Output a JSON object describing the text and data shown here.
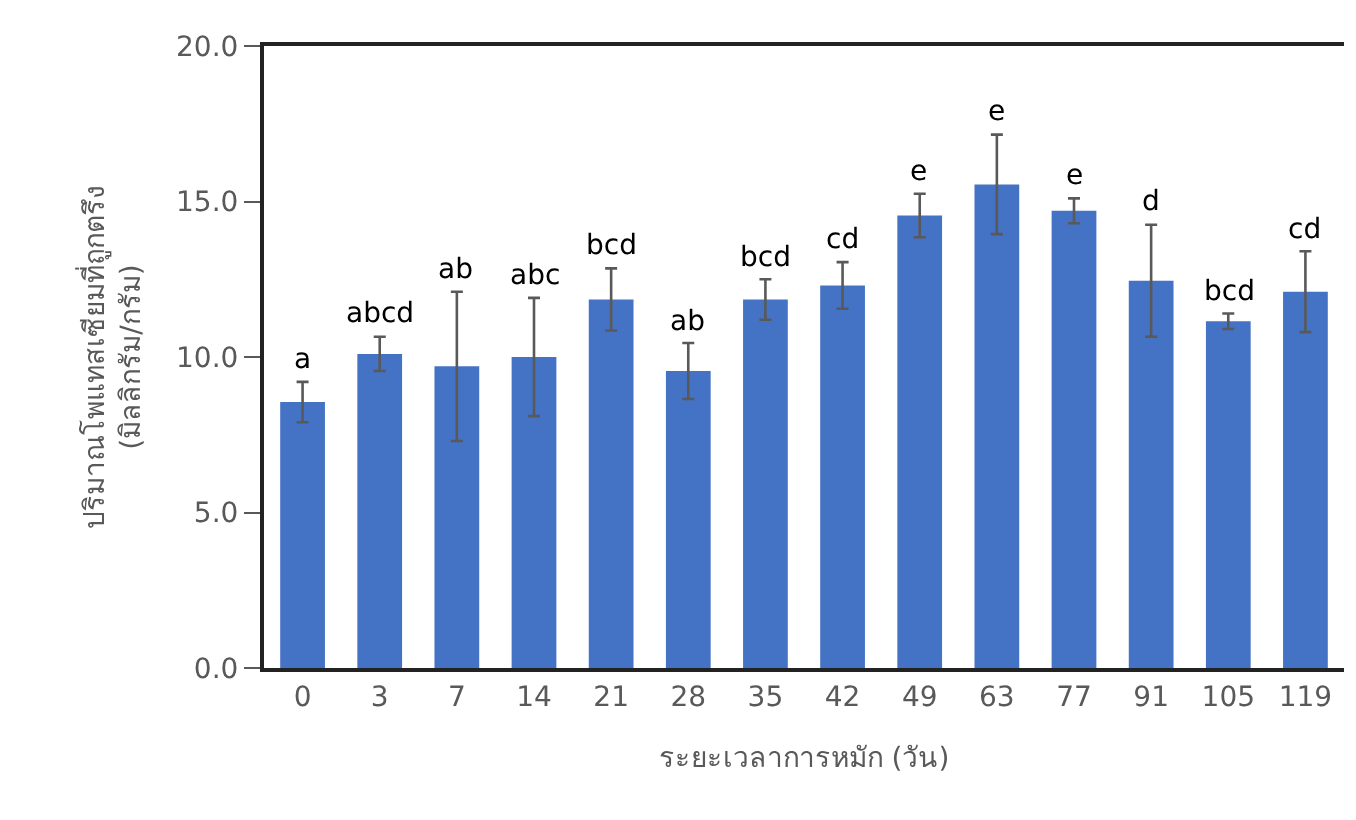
{
  "chart_data": {
    "type": "bar",
    "xlabel": "ระยะเวลาการหมัก (วัน)",
    "ylabel": "ปริมาณโพแทสเซียมที่ถูกตรึง\n(มิลลิกรัม/กรัม)",
    "categories": [
      "0",
      "3",
      "7",
      "14",
      "21",
      "28",
      "35",
      "42",
      "49",
      "63",
      "77",
      "91",
      "105",
      "119"
    ],
    "values": [
      8.55,
      10.1,
      9.7,
      10.0,
      11.85,
      9.55,
      11.85,
      12.3,
      14.55,
      15.55,
      14.7,
      12.45,
      11.15,
      12.1
    ],
    "errors": [
      0.65,
      0.55,
      2.4,
      1.9,
      1.0,
      0.9,
      0.65,
      0.75,
      0.7,
      1.6,
      0.4,
      1.8,
      0.25,
      1.3
    ],
    "color": "#4472c4",
    "ylim": [
      0,
      20
    ],
    "yticks": [
      {
        "value": 0,
        "label": "0.0"
      },
      {
        "value": 5,
        "label": "5.0"
      },
      {
        "value": 10,
        "label": "10.0"
      },
      {
        "value": 15,
        "label": "15.0"
      },
      {
        "value": 20,
        "label": "20.0"
      }
    ],
    "grid": false,
    "annotations": [
      {
        "text": "a",
        "x": "0",
        "y": 9.2
      },
      {
        "text": "abcd",
        "x": "3",
        "y": 10.65
      },
      {
        "text": "ab",
        "x": "7",
        "y": 12.1
      },
      {
        "text": "abc",
        "x": "14",
        "y": 11.9
      },
      {
        "text": "bcd",
        "x": "21",
        "y": 12.85
      },
      {
        "text": "ab",
        "x": "28",
        "y": 10.45
      },
      {
        "text": "bcd",
        "x": "35",
        "y": 12.5
      },
      {
        "text": "cd",
        "x": "42",
        "y": 13.05
      },
      {
        "text": "e",
        "x": "49",
        "y": 15.25
      },
      {
        "text": "e",
        "x": "63",
        "y": 17.15
      },
      {
        "text": "e",
        "x": "77",
        "y": 15.1
      },
      {
        "text": "d",
        "x": "91",
        "y": 14.25
      },
      {
        "text": "bcd",
        "x": "105",
        "y": 11.4
      },
      {
        "text": "cd",
        "x": "119",
        "y": 13.4
      }
    ]
  }
}
